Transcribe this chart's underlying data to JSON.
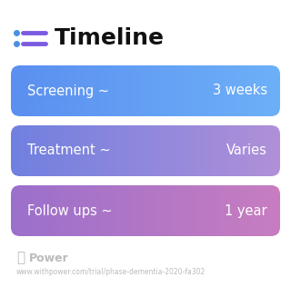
{
  "title": "Timeline",
  "background_color": "#ffffff",
  "rows": [
    {
      "label_left": "Screening ~",
      "label_right": "3 weeks",
      "gradient_start": "#5B8FF0",
      "gradient_end": "#6DB0F8"
    },
    {
      "label_left": "Treatment ~",
      "label_right": "Varies",
      "gradient_start": "#7080E0",
      "gradient_end": "#B090D8"
    },
    {
      "label_left": "Follow ups ~",
      "label_right": "1 year",
      "gradient_start": "#9B70CC",
      "gradient_end": "#C87DC0"
    }
  ],
  "footer_logo_text": "Power",
  "footer_url": "www.withpower.com/trial/phase-dementia-2020-fa302",
  "title_fontsize": 18,
  "row_label_fontsize": 10.5,
  "icon_color": "#7B5CE0",
  "icon_dot_color": "#4A90E2"
}
